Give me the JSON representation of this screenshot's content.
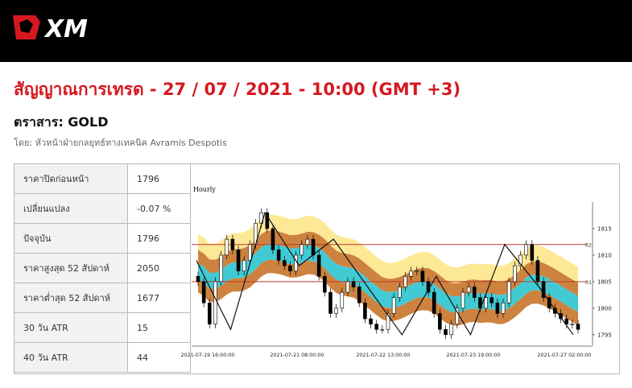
{
  "header": {
    "brand": "XM"
  },
  "title": "สัญญาณการเทรด - 27 / 07 / 2021 - 10:00 (GMT +3)",
  "instrument": "ตราสาร: GOLD",
  "author": "โดย: หัวหน้าฝ่ายกลยุทธ์ทางเทคนิค Avramis Despotis",
  "stats": [
    {
      "label": "ราคาปิดก่อนหน้า",
      "value": "1796"
    },
    {
      "label": "เปลี่ยนแปลง",
      "value": "-0.07 %"
    },
    {
      "label": "ปัจจุบัน",
      "value": "1796"
    },
    {
      "label": "ราคาสูงสุด 52 สัปดาห์",
      "value": "2050"
    },
    {
      "label": "ราคาต่ำสุด 52 สัปดาห์",
      "value": "1677"
    },
    {
      "label": "30 วัน ATR",
      "value": "15"
    },
    {
      "label": "40 วัน ATR",
      "value": "44"
    }
  ],
  "colors": {
    "brand_red": "#d51820",
    "band_yellow": "#fde68a",
    "band_orange": "#c8752a",
    "band_cyan": "#2ec4cf",
    "pivot_line": "#c0392b"
  },
  "chart_data": {
    "type": "candlestick",
    "title": "Hourly",
    "ylim": [
      1793,
      1820
    ],
    "y_ticks": [
      "1815",
      "1810",
      "1805",
      "1800",
      "1795"
    ],
    "x_ticks": [
      "2021-07-19 16:00:00",
      "2021-07-21 08:00:00",
      "2021-07-22 13:00:00",
      "2021-07-23 19:00:00",
      "2021-07-27 02:00:00"
    ],
    "levels": [
      {
        "name": "R2",
        "value": 1812
      },
      {
        "name": "R1",
        "value": 1805
      }
    ],
    "zigzag": [
      1809,
      1796,
      1818,
      1808,
      1813,
      1804,
      1795,
      1806,
      1795,
      1812,
      1804,
      1795
    ],
    "close": [
      1805,
      1801,
      1797,
      1805,
      1810,
      1813,
      1811,
      1807,
      1809,
      1812,
      1816,
      1818,
      1815,
      1811,
      1809,
      1808,
      1807,
      1810,
      1812,
      1813,
      1810,
      1806,
      1803,
      1799,
      1800,
      1803,
      1805,
      1804,
      1801,
      1798,
      1797,
      1796,
      1796,
      1799,
      1802,
      1804,
      1806,
      1807,
      1807,
      1805,
      1803,
      1799,
      1796,
      1795,
      1797,
      1800,
      1803,
      1804,
      1802,
      1800,
      1802,
      1801,
      1799,
      1801,
      1805,
      1808,
      1810,
      1812,
      1809,
      1805,
      1802,
      1800,
      1799,
      1798,
      1797,
      1797,
      1796
    ]
  }
}
